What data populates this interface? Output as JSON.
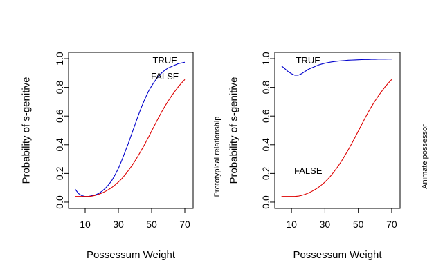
{
  "chart_data": [
    {
      "type": "line",
      "ylabel": "Probability of s-genitive",
      "xlabel": "Possessum Weight",
      "side_label": "Prototypical relationship",
      "xlim": [
        3,
        72
      ],
      "ylim": [
        0,
        1
      ],
      "xticks": [
        10,
        30,
        50,
        70
      ],
      "yticks": [
        0.0,
        0.2,
        0.4,
        0.6,
        0.8,
        1.0
      ],
      "ytick_labels": [
        "0.0",
        "0.2",
        "0.4",
        "0.6",
        "0.8",
        "1.0"
      ],
      "colors": {
        "TRUE": "#0000cc",
        "FALSE": "#dd0000"
      },
      "series": [
        {
          "name": "TRUE",
          "color": "#0000cc",
          "label_at": [
            58,
            0.99
          ],
          "x": [
            4,
            6,
            8,
            10,
            12,
            14,
            16,
            18,
            20,
            22,
            24,
            26,
            28,
            30,
            32,
            34,
            36,
            38,
            40,
            42,
            44,
            46,
            48,
            50,
            52,
            54,
            56,
            58,
            60,
            62,
            64,
            66,
            68,
            70
          ],
          "y": [
            0.09,
            0.06,
            0.045,
            0.04,
            0.04,
            0.045,
            0.05,
            0.06,
            0.075,
            0.095,
            0.12,
            0.15,
            0.19,
            0.235,
            0.29,
            0.35,
            0.41,
            0.475,
            0.54,
            0.605,
            0.665,
            0.72,
            0.77,
            0.81,
            0.845,
            0.875,
            0.9,
            0.92,
            0.935,
            0.945,
            0.955,
            0.965,
            0.97,
            0.975
          ]
        },
        {
          "name": "FALSE",
          "color": "#dd0000",
          "label_at": [
            58,
            0.88
          ],
          "x": [
            4,
            6,
            8,
            10,
            12,
            14,
            16,
            18,
            20,
            22,
            24,
            26,
            28,
            30,
            32,
            34,
            36,
            38,
            40,
            42,
            44,
            46,
            48,
            50,
            52,
            54,
            56,
            58,
            60,
            62,
            64,
            66,
            68,
            70
          ],
          "y": [
            0.04,
            0.04,
            0.04,
            0.04,
            0.04,
            0.042,
            0.047,
            0.054,
            0.063,
            0.074,
            0.087,
            0.102,
            0.12,
            0.14,
            0.163,
            0.19,
            0.22,
            0.252,
            0.287,
            0.325,
            0.365,
            0.407,
            0.45,
            0.495,
            0.54,
            0.585,
            0.628,
            0.668,
            0.705,
            0.74,
            0.772,
            0.803,
            0.83,
            0.855
          ]
        }
      ]
    },
    {
      "type": "line",
      "ylabel": "Probability of s-genitive",
      "xlabel": "Possessum Weight",
      "side_label": "Animate possessor",
      "xlim": [
        3,
        72
      ],
      "ylim": [
        0,
        1
      ],
      "xticks": [
        10,
        30,
        50,
        70
      ],
      "yticks": [
        0.0,
        0.2,
        0.4,
        0.6,
        0.8,
        1.0
      ],
      "ytick_labels": [
        "0.0",
        "0.2",
        "0.4",
        "0.6",
        "0.8",
        "1.0"
      ],
      "colors": {
        "TRUE": "#0000cc",
        "FALSE": "#dd0000"
      },
      "series": [
        {
          "name": "TRUE",
          "color": "#0000cc",
          "label_at": [
            20,
            0.99
          ],
          "x": [
            4,
            6,
            8,
            10,
            12,
            14,
            16,
            18,
            20,
            22,
            24,
            26,
            28,
            30,
            32,
            34,
            36,
            38,
            40,
            42,
            44,
            46,
            48,
            50,
            52,
            54,
            56,
            58,
            60,
            62,
            64,
            66,
            68,
            70
          ],
          "y": [
            0.95,
            0.93,
            0.91,
            0.895,
            0.885,
            0.885,
            0.895,
            0.91,
            0.925,
            0.935,
            0.945,
            0.955,
            0.962,
            0.968,
            0.973,
            0.977,
            0.98,
            0.983,
            0.985,
            0.987,
            0.989,
            0.99,
            0.991,
            0.992,
            0.993,
            0.994,
            0.994,
            0.995,
            0.995,
            0.996,
            0.996,
            0.996,
            0.997,
            0.997
          ]
        },
        {
          "name": "FALSE",
          "color": "#dd0000",
          "label_at": [
            20,
            0.22
          ],
          "x": [
            4,
            6,
            8,
            10,
            12,
            14,
            16,
            18,
            20,
            22,
            24,
            26,
            28,
            30,
            32,
            34,
            36,
            38,
            40,
            42,
            44,
            46,
            48,
            50,
            52,
            54,
            56,
            58,
            60,
            62,
            64,
            66,
            68,
            70
          ],
          "y": [
            0.04,
            0.04,
            0.04,
            0.04,
            0.04,
            0.042,
            0.047,
            0.054,
            0.063,
            0.074,
            0.087,
            0.102,
            0.12,
            0.14,
            0.163,
            0.19,
            0.22,
            0.252,
            0.287,
            0.325,
            0.365,
            0.407,
            0.45,
            0.495,
            0.54,
            0.585,
            0.628,
            0.668,
            0.705,
            0.74,
            0.772,
            0.803,
            0.83,
            0.855
          ]
        }
      ]
    }
  ]
}
